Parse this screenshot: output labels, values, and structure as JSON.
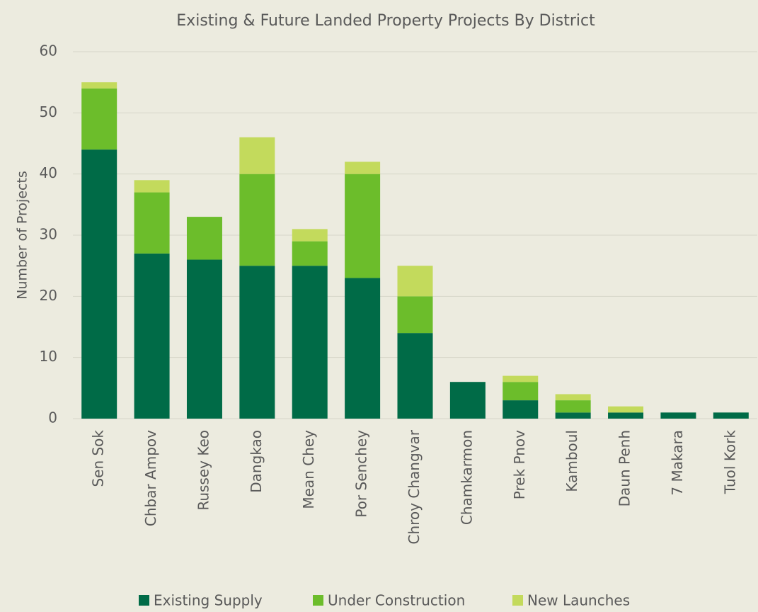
{
  "chart_data": {
    "type": "stacked_bar",
    "title": "Existing & Future Landed Property Projects By District",
    "y_label": "Number of Projects",
    "categories": [
      "Sen Sok",
      "Chbar Ampov",
      "Russey Keo",
      "Dangkao",
      "Mean Chey",
      "Por Senchey",
      "Chroy Changvar",
      "Chamkarmon",
      "Prek Pnov",
      "Kamboul",
      "Daun Penh",
      "7 Makara",
      "Tuol Kork"
    ],
    "series": [
      {
        "name": "Existing Supply",
        "color": "#006b47",
        "values": [
          44,
          27,
          26,
          25,
          25,
          23,
          14,
          6,
          3,
          1,
          1,
          1,
          1
        ]
      },
      {
        "name": "Under Construction",
        "color": "#6cbd2b",
        "values": [
          10,
          10,
          7,
          15,
          4,
          17,
          6,
          0,
          3,
          2,
          0,
          0,
          0
        ]
      },
      {
        "name": "New Launches",
        "color": "#c3da5c",
        "values": [
          1,
          2,
          0,
          6,
          2,
          2,
          5,
          0,
          1,
          1,
          1,
          0,
          0
        ]
      }
    ],
    "ylim": [
      0,
      60
    ],
    "yticks": [
      0,
      10,
      20,
      30,
      40,
      50,
      60
    ],
    "grid": true,
    "legend": "bottom"
  }
}
